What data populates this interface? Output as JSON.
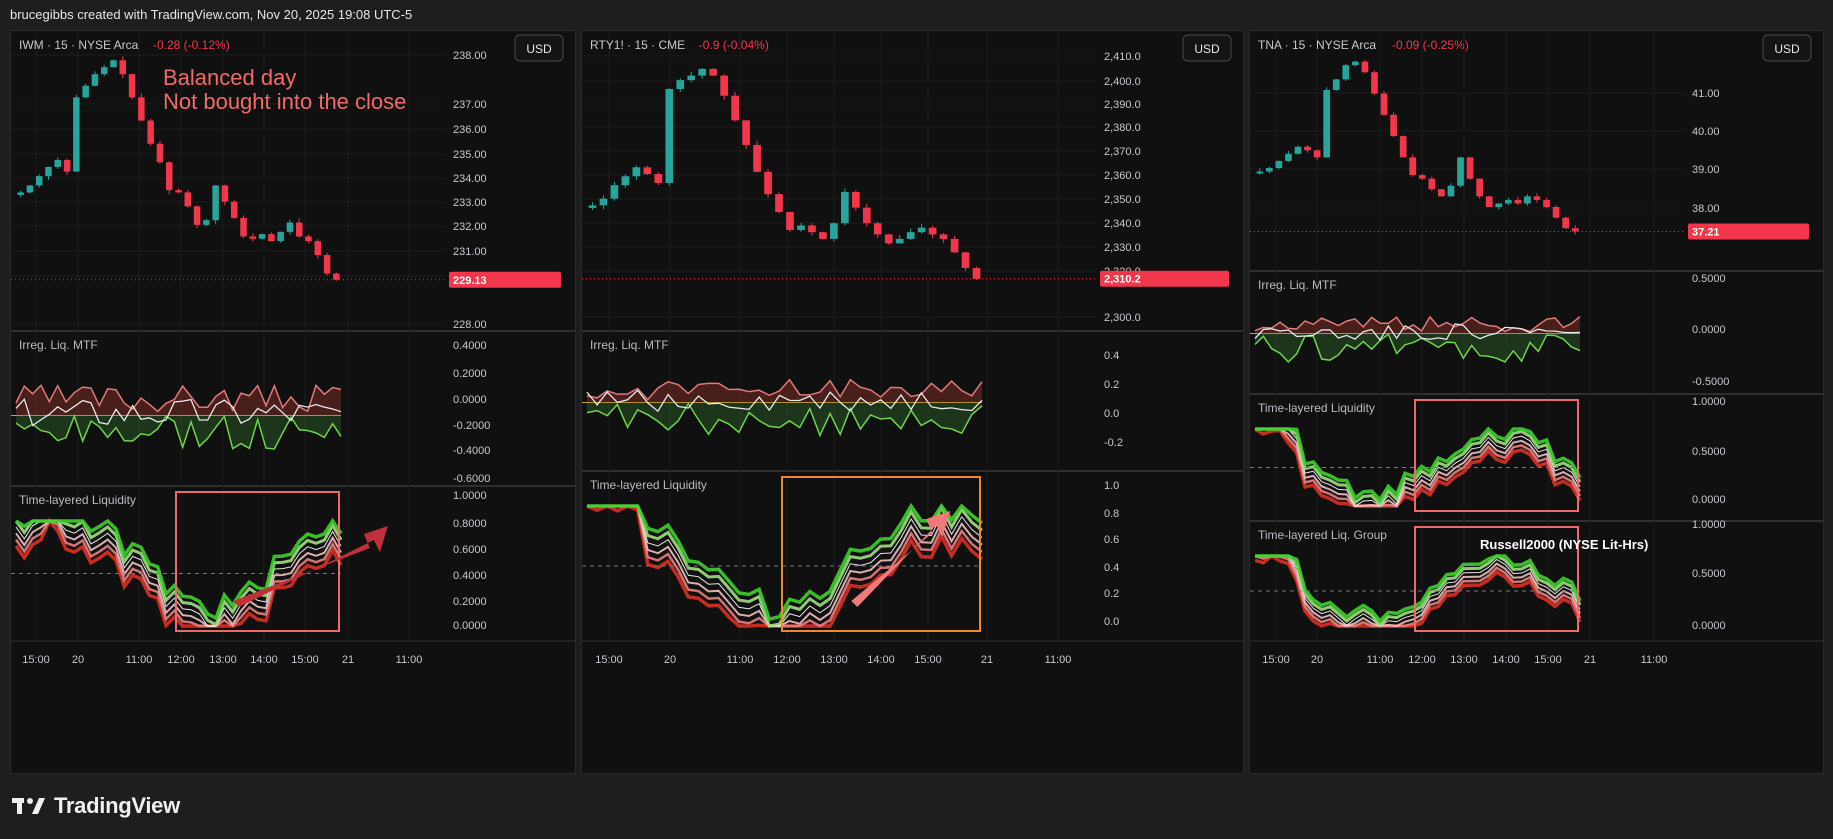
{
  "header": {
    "credit": "brucegibbs created with TradingView.com, Nov 20, 2025 19:08 UTC-5"
  },
  "footer": {
    "brand": "TradingView"
  },
  "colors": {
    "up": "#26a69a",
    "down": "#f2364c",
    "text": "#d1d4dc",
    "grid": "#1c1c1c"
  },
  "chart_data": [
    {
      "type": "candlestick",
      "symbol": "IWM · 15 · NYSE Arca",
      "change": "-0.28 (-0.12%)",
      "currency": "USD",
      "price_label": "229.13",
      "annotation": [
        "Balanced day",
        "Not bought into the close"
      ],
      "price_ticks": [
        "238.00",
        "237.00",
        "236.00",
        "235.00",
        "234.00",
        "233.00",
        "232.00",
        "231.00",
        "230.00",
        "228.00"
      ],
      "time_ticks": [
        "15:00",
        "20",
        "11:00",
        "12:00",
        "13:00",
        "14:00",
        "15:00",
        "21",
        "11:00"
      ],
      "indicators": [
        {
          "name": "Irreg. Liq. MTF",
          "ticks": [
            "0.4000",
            "0.2000",
            "0.0000",
            "-0.2000",
            "-0.4000",
            "-0.6000"
          ]
        },
        {
          "name": "Time-layered Liquidity",
          "ticks": [
            "1.0000",
            "0.8000",
            "0.6000",
            "0.4000",
            "0.2000",
            "0.0000"
          ]
        }
      ]
    },
    {
      "type": "candlestick",
      "symbol": "RTY1! · 15 · CME",
      "change": "-0.9 (-0.04%)",
      "currency": "USD",
      "price_label": "2,310.2",
      "price_ticks": [
        "2,410.0",
        "2,400.0",
        "2,390.0",
        "2,380.0",
        "2,370.0",
        "2,360.0",
        "2,350.0",
        "2,340.0",
        "2,330.0",
        "2,320.0",
        "2,300.0"
      ],
      "time_ticks": [
        "15:00",
        "20",
        "11:00",
        "12:00",
        "13:00",
        "14:00",
        "15:00",
        "21",
        "11:00"
      ],
      "indicators": [
        {
          "name": "Irreg. Liq. MTF",
          "ticks": [
            "0.4",
            "0.2",
            "0.0",
            "-0.2"
          ]
        },
        {
          "name": "Time-layered Liquidity",
          "ticks": [
            "1.0",
            "0.8",
            "0.6",
            "0.4",
            "0.2",
            "0.0"
          ]
        }
      ]
    },
    {
      "type": "candlestick",
      "symbol": "TNA · 15 · NYSE Arca",
      "change": "-0.09 (-0.25%)",
      "currency": "USD",
      "price_label": "37.21",
      "price_ticks": [
        "41.00",
        "40.00",
        "39.00",
        "38.00"
      ],
      "time_ticks": [
        "15:00",
        "20",
        "11:00",
        "12:00",
        "13:00",
        "14:00",
        "15:00",
        "21",
        "11:00"
      ],
      "indicators": [
        {
          "name": "Irreg. Liq. MTF",
          "ticks": [
            "0.5000",
            "0.0000",
            "-0.5000"
          ]
        },
        {
          "name": "Time-layered Liquidity",
          "ticks": [
            "1.0000",
            "0.5000",
            "0.0000"
          ]
        },
        {
          "name": "Time-layered Liq. Group",
          "ticks": [
            "1.0000",
            "0.5000",
            "0.0000"
          ],
          "annotation": "Russell2000 (NYSE Lit-Hrs)"
        }
      ]
    }
  ]
}
